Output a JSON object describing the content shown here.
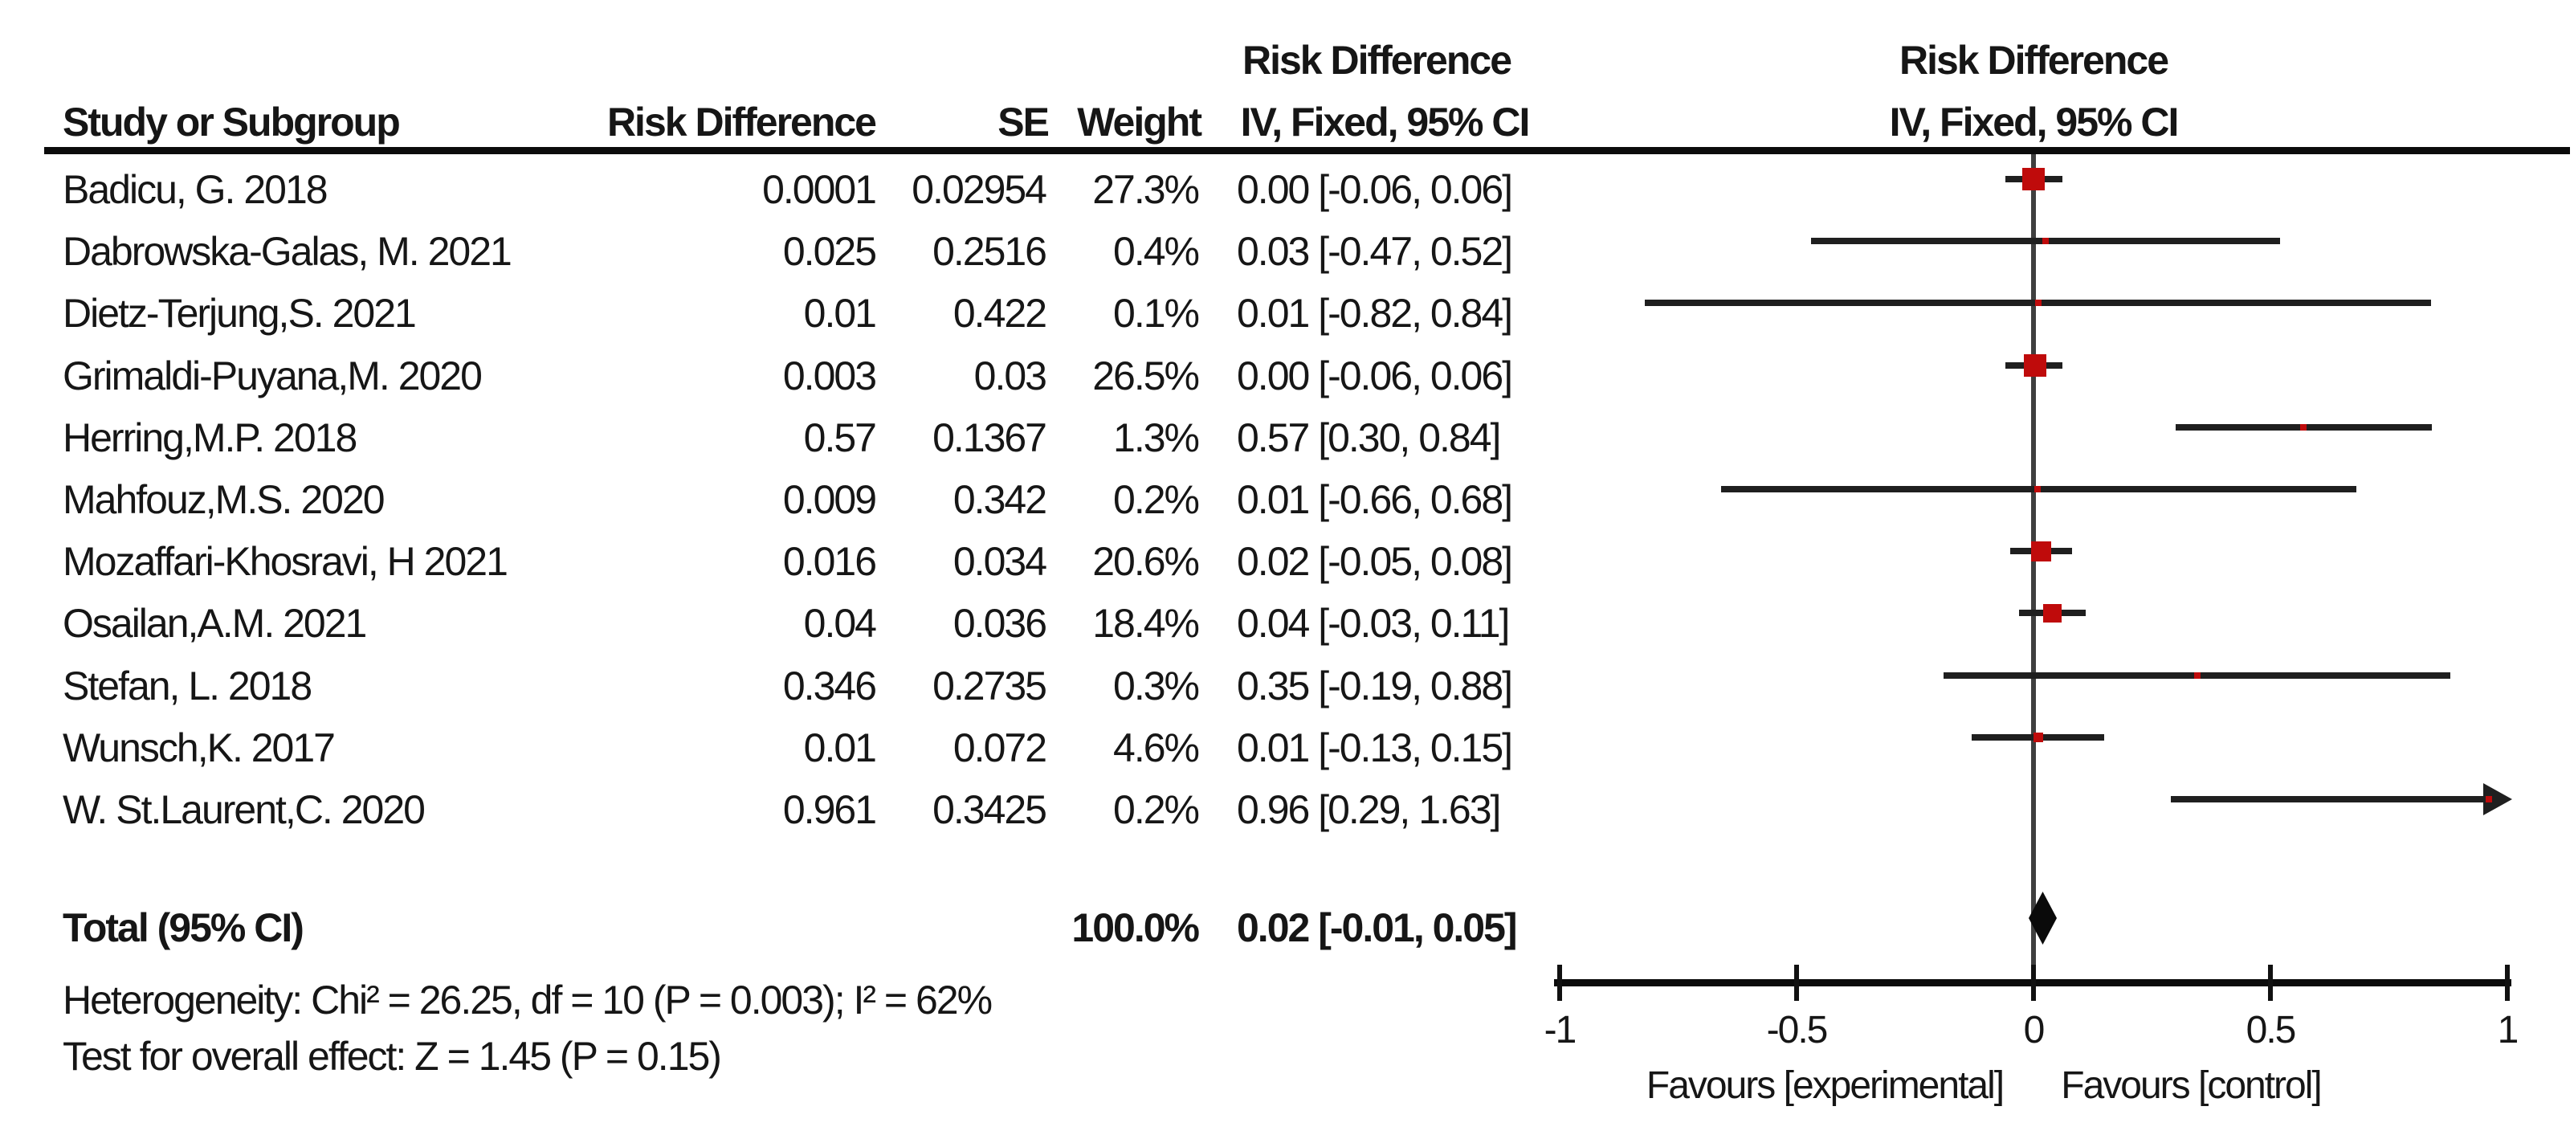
{
  "header": {
    "table_effect_header": "Risk Difference",
    "plot_effect_header": "Risk Difference",
    "col_study": "Study or Subgroup",
    "col_rd": "Risk Difference",
    "col_se": "SE",
    "col_weight": "Weight",
    "col_ci": "IV, Fixed, 95% CI",
    "plot_method_header": "IV, Fixed, 95% CI"
  },
  "total_row": {
    "label": "Total (95% CI)",
    "weight": "100.0%",
    "ci_text": "0.02 [-0.01, 0.05]"
  },
  "footer": {
    "heterogeneity": "Heterogeneity: Chi² = 26.25, df = 10 (P = 0.003); I² = 62%",
    "overall_effect": "Test for overall effect: Z = 1.45 (P = 0.15)"
  },
  "axis_labels": {
    "favours_left": "Favours [experimental]",
    "favours_right": "Favours [control]"
  },
  "colors": {
    "square_red": "#bf0b0b",
    "diamond_black": "#0a0a0a",
    "ci_line": "#1f1f1f",
    "zero_line": "#3f3f3f",
    "axis": "#111111",
    "text": "#161616"
  },
  "chart_data": {
    "type": "forest",
    "effect_measure": "Risk Difference",
    "method": "IV, Fixed, 95% CI",
    "studies": [
      {
        "name": "Badicu, G. 2018",
        "rd": "0.0001",
        "se": "0.02954",
        "weight": "27.3%",
        "ci_text": "0.00 [-0.06, 0.06]",
        "est": 0.0001,
        "lo": -0.06,
        "hi": 0.06,
        "w": 27.3
      },
      {
        "name": "Dabrowska-Galas, M. 2021",
        "rd": "0.025",
        "se": "0.2516",
        "weight": "0.4%",
        "ci_text": "0.03 [-0.47, 0.52]",
        "est": 0.025,
        "lo": -0.47,
        "hi": 0.52,
        "w": 0.4
      },
      {
        "name": "Dietz-Terjung,S. 2021",
        "rd": "0.01",
        "se": "0.422",
        "weight": "0.1%",
        "ci_text": "0.01 [-0.82, 0.84]",
        "est": 0.01,
        "lo": -0.82,
        "hi": 0.84,
        "w": 0.1
      },
      {
        "name": "Grimaldi-Puyana,M. 2020",
        "rd": "0.003",
        "se": "0.03",
        "weight": "26.5%",
        "ci_text": "0.00 [-0.06, 0.06]",
        "est": 0.003,
        "lo": -0.06,
        "hi": 0.06,
        "w": 26.5
      },
      {
        "name": "Herring,M.P. 2018",
        "rd": "0.57",
        "se": "0.1367",
        "weight": "1.3%",
        "ci_text": "0.57 [0.30, 0.84]",
        "est": 0.57,
        "lo": 0.3,
        "hi": 0.84,
        "w": 1.3
      },
      {
        "name": "Mahfouz,M.S. 2020",
        "rd": "0.009",
        "se": "0.342",
        "weight": "0.2%",
        "ci_text": "0.01 [-0.66, 0.68]",
        "est": 0.009,
        "lo": -0.66,
        "hi": 0.68,
        "w": 0.2
      },
      {
        "name": "Mozaffari-Khosravi, H 2021",
        "rd": "0.016",
        "se": "0.034",
        "weight": "20.6%",
        "ci_text": "0.02 [-0.05, 0.08]",
        "est": 0.016,
        "lo": -0.05,
        "hi": 0.08,
        "w": 20.6
      },
      {
        "name": "Osailan,A.M. 2021",
        "rd": "0.04",
        "se": "0.036",
        "weight": "18.4%",
        "ci_text": "0.04 [-0.03, 0.11]",
        "est": 0.04,
        "lo": -0.03,
        "hi": 0.11,
        "w": 18.4
      },
      {
        "name": "Stefan, L. 2018",
        "rd": "0.346",
        "se": "0.2735",
        "weight": "0.3%",
        "ci_text": "0.35 [-0.19, 0.88]",
        "est": 0.346,
        "lo": -0.19,
        "hi": 0.88,
        "w": 0.3
      },
      {
        "name": "Wunsch,K. 2017",
        "rd": "0.01",
        "se": "0.072",
        "weight": "4.6%",
        "ci_text": "0.01 [-0.13, 0.15]",
        "est": 0.01,
        "lo": -0.13,
        "hi": 0.15,
        "w": 4.6
      },
      {
        "name": "W. St.Laurent,C. 2020",
        "rd": "0.961",
        "se": "0.3425",
        "weight": "0.2%",
        "ci_text": "0.96 [0.29, 1.63]",
        "est": 0.961,
        "lo": 0.29,
        "hi": 1.63,
        "w": 0.2
      }
    ],
    "total": {
      "est": 0.02,
      "lo": -0.01,
      "hi": 0.05
    },
    "axis": {
      "min": -1,
      "max": 1,
      "tick_values": [
        -1,
        -0.5,
        0,
        0.5,
        1
      ],
      "tick_labels": [
        "-1",
        "-0.5",
        "0",
        "0.5",
        "1"
      ]
    }
  }
}
